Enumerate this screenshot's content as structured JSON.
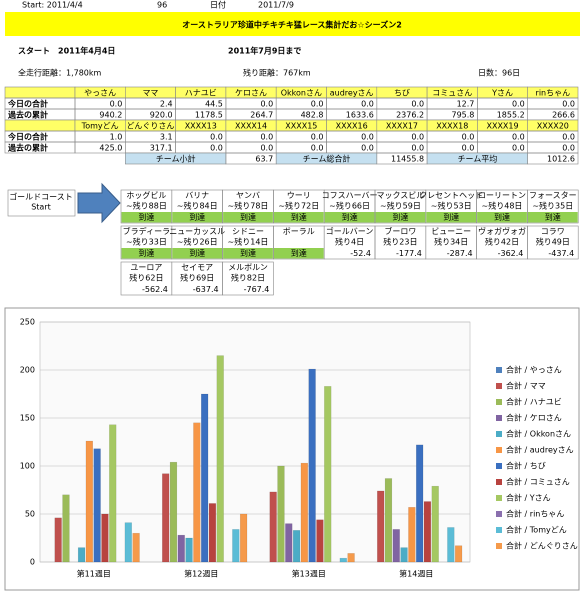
{
  "header": {
    "start": "Start: 2011/4/4",
    "days": "96",
    "date_label": "日付",
    "end_date": "2011/7/9",
    "title": "オーストラリア珍道中チキチキ猛レース集計だお☆シーズン2",
    "start_text": "スタート　2011年4月4日",
    "end_text": "2011年7月9日まで",
    "total_distance": "全走行距離：1,780km",
    "remaining": "残り距離：767km",
    "day_count": "日数：96日"
  },
  "table": {
    "blocks": [
      {
        "header": [
          "やっさん",
          "ママ",
          "ハナユビ",
          "ケロさん",
          "Okkonさん",
          "audreyさん",
          "ちび",
          "コミュさん",
          "Yさん",
          "rinちゃん"
        ],
        "rows": [
          {
            "label": "今日の合計",
            "cells": [
              "0.0",
              "2.4",
              "44.5",
              "0.0",
              "0.0",
              "0.0",
              "0.0",
              "12.7",
              "0.0",
              "0.0"
            ]
          },
          {
            "label": "過去の累計",
            "cells": [
              "940.2",
              "920.0",
              "1178.5",
              "264.7",
              "482.8",
              "1633.6",
              "2376.2",
              "795.8",
              "1855.2",
              "266.6"
            ]
          }
        ]
      },
      {
        "header": [
          "Tomyどん",
          "どんぐりさん",
          "XXXX13",
          "XXXX14",
          "XXXX15",
          "XXXX16",
          "XXXX17",
          "XXXX18",
          "XXXX19",
          "XXXX20"
        ],
        "rows": [
          {
            "label": "今日の合計",
            "cells": [
              "1.0",
              "3.1",
              "0.0",
              "0.0",
              "0.0",
              "0.0",
              "0.0",
              "0.0",
              "0.0",
              "0.0"
            ]
          },
          {
            "label": "過去の累計",
            "cells": [
              "425.0",
              "317.1",
              "0.0",
              "0.0",
              "0.0",
              "0.0",
              "0.0",
              "0.0",
              "0.0",
              "0.0"
            ]
          }
        ]
      }
    ],
    "summary": [
      {
        "label": "チーム小計",
        "value": "63.7"
      },
      {
        "label": "チーム総合計",
        "value": "11455.8"
      },
      {
        "label": "チーム平均",
        "value": "1012.6"
      }
    ]
  },
  "course": {
    "start": [
      "ゴールドコースト",
      "Start"
    ],
    "rows": [
      [
        {
          "name": "ホッグビル",
          "days": "~残り88日",
          "status": "到達"
        },
        {
          "name": "バリナ",
          "days": "~残り84日",
          "status": "到達"
        },
        {
          "name": "ヤンバ",
          "days": "~残り78日",
          "status": "到達"
        },
        {
          "name": "ウーリ",
          "days": "~残り72日",
          "status": "到達"
        },
        {
          "name": "コフスハーバー",
          "days": "~残り66日",
          "status": "到達"
        },
        {
          "name": "マックスビル",
          "days": "~残り59日",
          "status": "到達"
        },
        {
          "name": "クレセントヘッド",
          "days": "~残り53日",
          "status": "到達"
        },
        {
          "name": "ローリートン",
          "days": "~残り48日",
          "status": "到達"
        },
        {
          "name": "フォースター",
          "days": "~残り35日",
          "status": "到達"
        }
      ],
      [
        {
          "name": "ブラディーラ",
          "days": "~残り33日",
          "status": "到達"
        },
        {
          "name": "ニューカッスル",
          "days": "~残り26日",
          "status": "到達"
        },
        {
          "name": "シドニー",
          "days": "~残り14日",
          "status": "到達"
        },
        {
          "name": "ボーラル",
          "status": "到達"
        },
        {
          "name": "ゴールバーン",
          "days": "残り4日",
          "status": "-52.4"
        },
        {
          "name": "ブーロワ",
          "days": "残り23日",
          "status": "-177.4"
        },
        {
          "name": "ビューニー",
          "days": "残り34日",
          "status": "-287.4"
        },
        {
          "name": "ヴォガヴォガ",
          "days": "残り42日",
          "status": "-362.4"
        },
        {
          "name": "コラワ",
          "days": "残り49日",
          "status": "-437.4"
        }
      ],
      [
        {
          "name": "ユーロア",
          "days": "残り62日",
          "status": "-562.4"
        },
        {
          "name": "セイモア",
          "days": "残り69日",
          "status": "-637.4"
        },
        {
          "name": "メルボルン",
          "days": "残り82日",
          "status": "-767.4"
        }
      ]
    ]
  },
  "chart_data": {
    "type": "bar",
    "categories": [
      "第11週目",
      "第12週目",
      "第13週目",
      "第14週目"
    ],
    "series": [
      {
        "name": "合計 / やっさん",
        "color": "#4f81bd",
        "values": [
          0,
          0,
          0,
          0
        ]
      },
      {
        "name": "合計 / ママ",
        "color": "#c0504d",
        "values": [
          46,
          92,
          73,
          74
        ]
      },
      {
        "name": "合計 / ハナユビ",
        "color": "#9bbb59",
        "values": [
          70,
          104,
          100,
          87
        ]
      },
      {
        "name": "合計 / ケロさん",
        "color": "#8064a2",
        "values": [
          0,
          28,
          40,
          34
        ]
      },
      {
        "name": "合計 / Okkonさん",
        "color": "#4bacc6",
        "values": [
          15,
          25,
          33,
          15
        ]
      },
      {
        "name": "合計 / audreyさん",
        "color": "#f79646",
        "values": [
          126,
          145,
          103,
          57
        ]
      },
      {
        "name": "合計 / ちび",
        "color": "#3a6fc0",
        "values": [
          118,
          175,
          201,
          122
        ]
      },
      {
        "name": "合計 / コミュさん",
        "color": "#b8433f",
        "values": [
          50,
          61,
          44,
          63
        ]
      },
      {
        "name": "合計 / Yさん",
        "color": "#a5c862",
        "values": [
          143,
          215,
          183,
          79
        ]
      },
      {
        "name": "合計 / rinちゃん",
        "color": "#8a6fae",
        "values": [
          0,
          0,
          0,
          0
        ]
      },
      {
        "name": "合計 / Tomyどん",
        "color": "#5bbcd6",
        "values": [
          41,
          34,
          4,
          36
        ]
      },
      {
        "name": "合計 / どんぐりさん",
        "color": "#f59a4b",
        "values": [
          30,
          50,
          9,
          17
        ]
      }
    ],
    "ylim": [
      0,
      250
    ],
    "yticks": [
      0,
      50,
      100,
      150,
      200,
      250
    ],
    "grid": true
  }
}
